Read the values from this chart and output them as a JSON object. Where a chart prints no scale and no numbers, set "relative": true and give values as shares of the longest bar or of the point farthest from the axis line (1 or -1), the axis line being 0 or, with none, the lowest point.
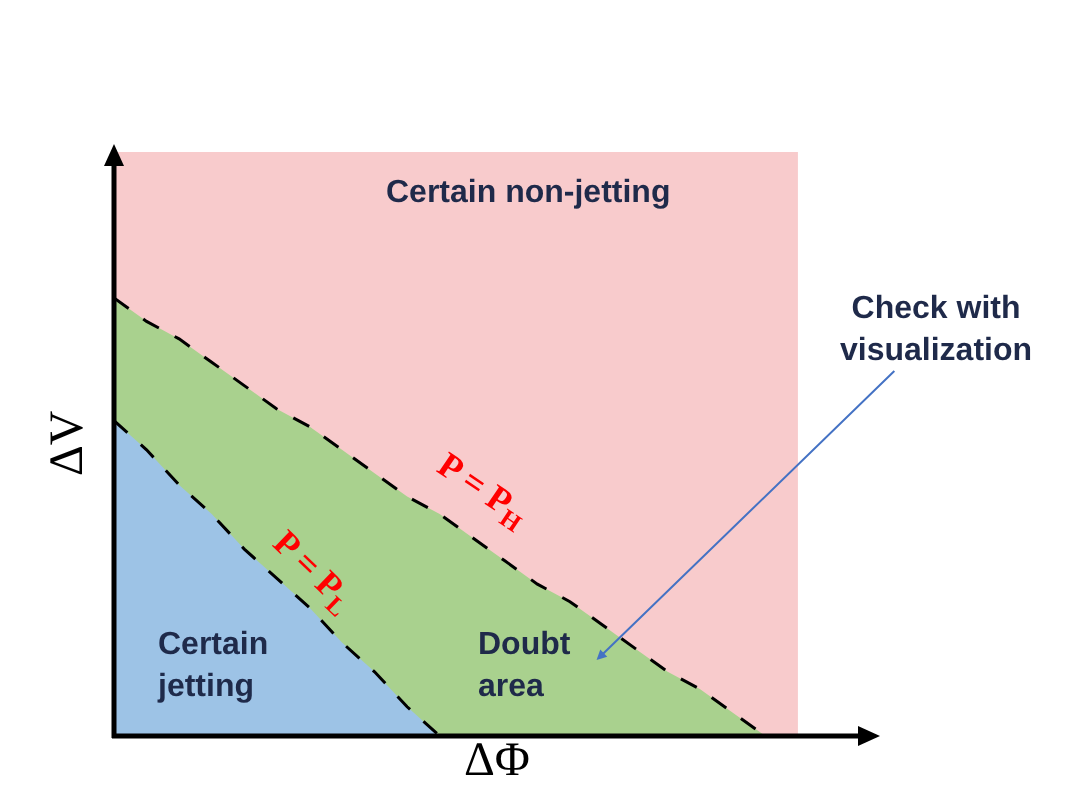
{
  "chart_data": {
    "type": "area",
    "relative": true,
    "xlabel": "ΔΦ",
    "ylabel": "ΔV",
    "categories": [
      null,
      null,
      null,
      null,
      null,
      null,
      null,
      null,
      null,
      null,
      null,
      null,
      null,
      null,
      null,
      null,
      null,
      null,
      null,
      null,
      null,
      null
    ],
    "series": [
      {
        "color": "#f8cbcc",
        "values": [
          1,
          1,
          1,
          1,
          1,
          1,
          1,
          1,
          1,
          1,
          1,
          1,
          1,
          1,
          1,
          1,
          1,
          1,
          1,
          1,
          1,
          1
        ]
      },
      {
        "color": "#a9d18e",
        "line_style": "dashed",
        "values": [
          0.75,
          0.71,
          0.68,
          0.64,
          0.6,
          0.56,
          0.53,
          0.49,
          0.45,
          0.41,
          0.38,
          0.34,
          0.3,
          0.26,
          0.23,
          0.19,
          0.15,
          0.11,
          0.08,
          0.04,
          0,
          null
        ]
      },
      {
        "color": "#9dc3e6",
        "line_style": "dashed",
        "values": [
          0.54,
          0.49,
          0.43,
          0.38,
          0.32,
          0.27,
          0.22,
          0.16,
          0.11,
          0.05,
          0,
          null,
          null,
          null,
          null,
          null,
          null,
          null,
          null,
          null,
          null,
          null
        ]
      }
    ],
    "annotations": [
      "Certain non-jetting",
      "Check with visualization",
      "P = P$_{H}$",
      "P = P$_{L}$",
      "Certain jetting",
      "Doubt area"
    ]
  }
}
